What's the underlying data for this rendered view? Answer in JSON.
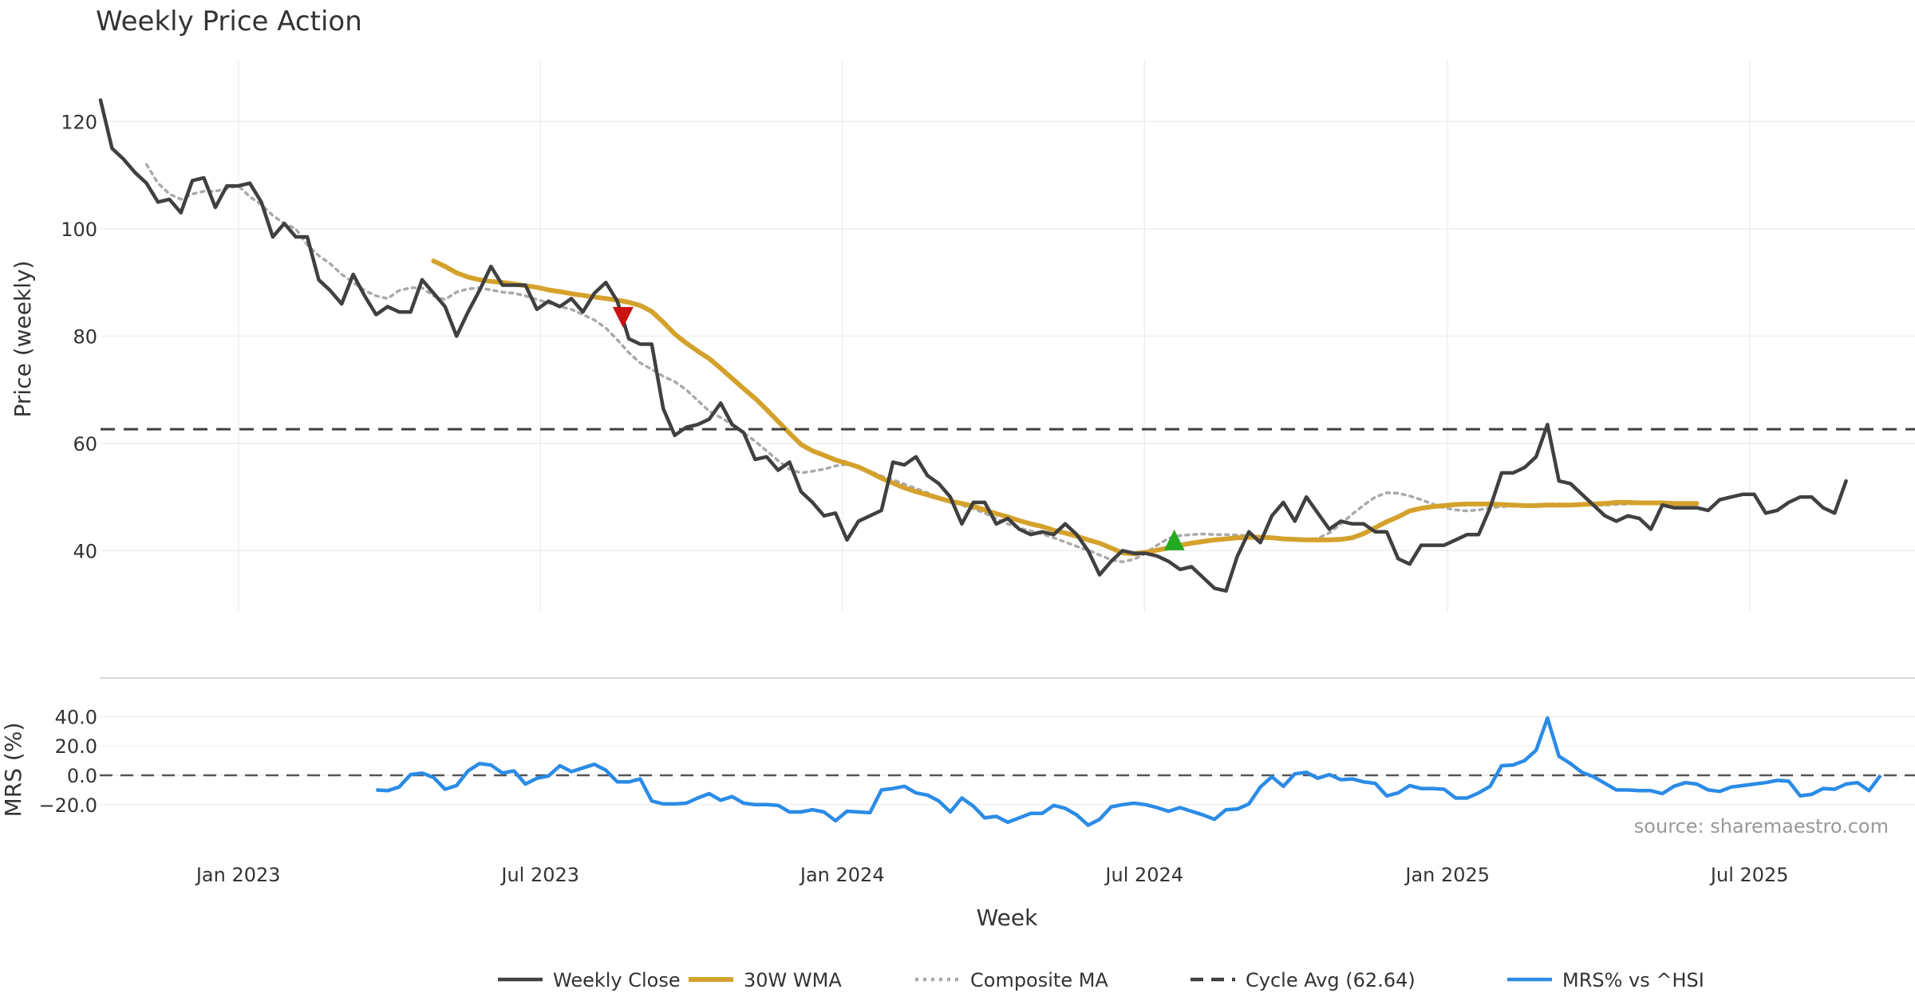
{
  "chart_data": {
    "type": "line",
    "title": "Weekly Price Action",
    "xlabel": "Week",
    "x_ticks": [
      "Jan 2023",
      "Jul 2023",
      "Jan 2024",
      "Jul 2024",
      "Jan 2025",
      "Jul 2025"
    ],
    "x_tick_weeks": [
      12,
      38.3,
      64.6,
      90.9,
      117.3,
      143.6
    ],
    "x_range_weeks": [
      0,
      158
    ],
    "watermark": "source: sharemaestro.com",
    "legend": [
      {
        "key": "close",
        "label": "Weekly Close",
        "color": "#404040",
        "style": "solid"
      },
      {
        "key": "wma",
        "label": "30W WMA",
        "color": "#d4a22c",
        "style": "solid"
      },
      {
        "key": "composite",
        "label": "Composite MA",
        "color": "#aaaaaa",
        "style": "dotted"
      },
      {
        "key": "cycle",
        "label": "Cycle Avg (62.64)",
        "color": "#404040",
        "style": "dashed"
      },
      {
        "key": "mrs",
        "label": "MRS% vs ^HSI",
        "color": "#2b8be6",
        "style": "solid"
      }
    ],
    "price_panel": {
      "ylabel": "Price (weekly)",
      "ylim": [
        28,
        130
      ],
      "yticks": [
        40,
        60,
        80,
        100,
        120
      ],
      "cycle_avg": 62.64,
      "series": [
        {
          "name": "Weekly Close",
          "color": "#404040",
          "start_week": 0,
          "values": [
            124,
            115,
            113,
            110.5,
            108.5,
            105,
            105.5,
            103,
            109,
            109.5,
            104,
            108,
            108,
            108.5,
            105,
            98.5,
            101,
            98.5,
            98.5,
            90.5,
            88.5,
            86,
            91.5,
            87.5,
            84,
            85.5,
            84.5,
            84.5,
            90.5,
            88,
            85.5,
            80,
            84.5,
            88.5,
            93,
            89.5,
            89.5,
            89.5,
            85,
            86.5,
            85.5,
            87,
            84.5,
            88,
            90,
            86.5,
            79.5,
            78.5,
            78.5,
            66.5,
            61.5,
            63,
            63.5,
            64.5,
            67.5,
            63.5,
            62,
            57,
            57.5,
            55,
            56.5,
            51,
            49,
            46.5,
            47,
            42,
            45.5,
            46.5,
            47.5,
            56.5,
            56,
            57.5,
            54,
            52.5,
            50,
            45,
            49,
            49,
            45,
            46,
            44,
            43,
            43.5,
            43,
            45,
            43,
            40,
            35.5,
            38,
            40,
            39.5,
            39.5,
            39,
            38,
            36.5,
            37,
            35,
            33,
            32.5,
            39,
            43.5,
            41.5,
            46.5,
            49,
            45.5,
            50,
            47,
            44,
            45.5,
            45,
            45,
            43.5,
            43.5,
            38.5,
            37.5,
            41,
            41,
            41,
            42,
            43,
            43,
            48,
            54.5,
            54.5,
            55.5,
            57.5,
            63.5,
            53,
            52.5,
            50.5,
            48.5,
            46.5,
            45.5,
            46.5,
            46,
            44,
            48.5,
            48,
            48,
            48,
            47.5,
            49.5,
            50,
            50.5,
            50.5,
            47,
            47.5,
            49,
            50,
            50,
            48,
            47,
            53
          ]
        },
        {
          "name": "30W WMA",
          "color": "#d4a22c",
          "start_week": 29,
          "values": [
            94,
            93,
            91.8,
            91,
            90.5,
            90.2,
            90,
            89.7,
            89.4,
            89.1,
            88.6,
            88.3,
            87.9,
            87.6,
            87.3,
            87,
            86.7,
            86.3,
            85.7,
            84.6,
            82.6,
            80.4,
            78.7,
            77.2,
            75.8,
            74,
            72.1,
            70.2,
            68.4,
            66.3,
            64.1,
            61.9,
            59.8,
            58.6,
            57.8,
            56.9,
            56.3,
            55.6,
            54.6,
            53.5,
            52.6,
            51.7,
            51,
            50.4,
            49.8,
            49.2,
            48.8,
            48.3,
            47.6,
            46.9,
            46.3,
            45.6,
            45,
            44.5,
            43.8,
            43.3,
            42.7,
            42,
            41.4,
            40.5,
            39.6,
            39.4,
            39.7,
            40.1,
            40.5,
            41,
            41.4,
            41.7,
            42,
            42.2,
            42.4,
            42.5,
            42.5,
            42.4,
            42.2,
            42.1,
            42,
            42,
            42,
            42.1,
            42.4,
            43.2,
            44.3,
            45.4,
            46.3,
            47.4,
            47.9,
            48.2,
            48.4,
            48.6,
            48.7,
            48.7,
            48.7,
            48.6,
            48.5,
            48.4,
            48.4,
            48.5,
            48.5,
            48.5,
            48.6,
            48.7,
            48.8,
            49,
            49,
            48.9,
            48.9,
            48.9,
            48.8,
            48.8,
            48.8
          ]
        },
        {
          "name": "Composite MA",
          "color": "#aaaaaa",
          "start_week": 4,
          "values": [
            112,
            108.5,
            106.5,
            105.5,
            106.5,
            107,
            107,
            107.5,
            108,
            106,
            104.5,
            102.5,
            101,
            100,
            97,
            95,
            93.5,
            91.5,
            90,
            88.5,
            87.5,
            87,
            88.5,
            89,
            89,
            87.5,
            86.8,
            88.2,
            88.8,
            89,
            88.6,
            88.2,
            88,
            87.5,
            86.8,
            86.2,
            85.5,
            85,
            84,
            83,
            81.5,
            79.3,
            76.9,
            75,
            73.8,
            72.5,
            71.5,
            70,
            68,
            66,
            64.8,
            63.6,
            62,
            60.4,
            58.6,
            56.8,
            55.2,
            54.5,
            54.8,
            55.2,
            55.8,
            56.1,
            55.6,
            54.8,
            53.9,
            53.2,
            52.4,
            51.6,
            50.8,
            49.9,
            49.2,
            48.5,
            47.8,
            47,
            46,
            45,
            44.2,
            43.7,
            43.1,
            42.4,
            41.6,
            40.8,
            40.1,
            39.2,
            38.3,
            37.9,
            38.4,
            39.5,
            41,
            42.3,
            42.8,
            43,
            43.1,
            43,
            43,
            42.9,
            42.8,
            42.6,
            42.4,
            42.2,
            42,
            42,
            42.3,
            43.3,
            45,
            46.8,
            48.5,
            50,
            50.8,
            50.7,
            50.2,
            49.5,
            48.7,
            48,
            47.6,
            47.4,
            47.6,
            48,
            48.2,
            48.3,
            48.5,
            48.6,
            48.7,
            48.7,
            48.6,
            48.6,
            48.5,
            48.5,
            48.6,
            48.7,
            48.8,
            48.8
          ]
        },
        {
          "name": "Cycle Avg (62.64)",
          "color": "#404040",
          "value": 62.64
        }
      ],
      "markers": [
        {
          "type": "sell",
          "week": 45.5,
          "value": 83.5,
          "color": "#cc1111"
        },
        {
          "type": "buy",
          "week": 93.5,
          "value": 42,
          "color": "#22aa22"
        }
      ]
    },
    "mrs_panel": {
      "ylabel": "MRS (%)",
      "ylim": [
        -33,
        43
      ],
      "yticks": [
        -20.0,
        0.0,
        20.0,
        40.0
      ],
      "series": [
        {
          "name": "MRS% vs ^HSI",
          "color": "#2b8be6",
          "start_week": 24,
          "values": [
            -10,
            -10.5,
            -8,
            0.5,
            1.5,
            -1.5,
            -9.5,
            -7,
            3,
            8,
            7,
            1.5,
            3,
            -6,
            -2,
            -0.5,
            6.5,
            2.5,
            5,
            7.5,
            3.5,
            -4.5,
            -4.5,
            -2.5,
            -17.5,
            -19.5,
            -19.5,
            -19,
            -15.5,
            -12.5,
            -17,
            -14.5,
            -19,
            -20,
            -20,
            -20.5,
            -25,
            -25,
            -23.5,
            -25,
            -31,
            -24.5,
            -25,
            -25.5,
            -10,
            -9,
            -7.5,
            -12,
            -13.5,
            -17.5,
            -25,
            -15.5,
            -21,
            -29,
            -28,
            -32,
            -29,
            -26,
            -26,
            -20.5,
            -22.5,
            -27,
            -34,
            -30,
            -21.5,
            -20,
            -19,
            -20,
            -22,
            -24.5,
            -22,
            -24.5,
            -27,
            -30,
            -23.5,
            -23,
            -19.5,
            -8,
            -1,
            -7.5,
            1,
            2,
            -2,
            0.5,
            -3,
            -2.5,
            -4.5,
            -5.5,
            -14,
            -12,
            -7,
            -9,
            -9,
            -9.5,
            -15.5,
            -15.5,
            -12,
            -7.5,
            6.5,
            7,
            10,
            17,
            39,
            13,
            8,
            2,
            -1,
            -5.5,
            -10,
            -10,
            -10.5,
            -10.5,
            -12.5,
            -7.5,
            -5,
            -6,
            -10,
            -11,
            -8,
            -7,
            -6,
            -5,
            -3.5,
            -4,
            -14,
            -13,
            -9,
            -9.5,
            -6,
            -5,
            -10.5,
            0
          ]
        }
      ]
    }
  }
}
